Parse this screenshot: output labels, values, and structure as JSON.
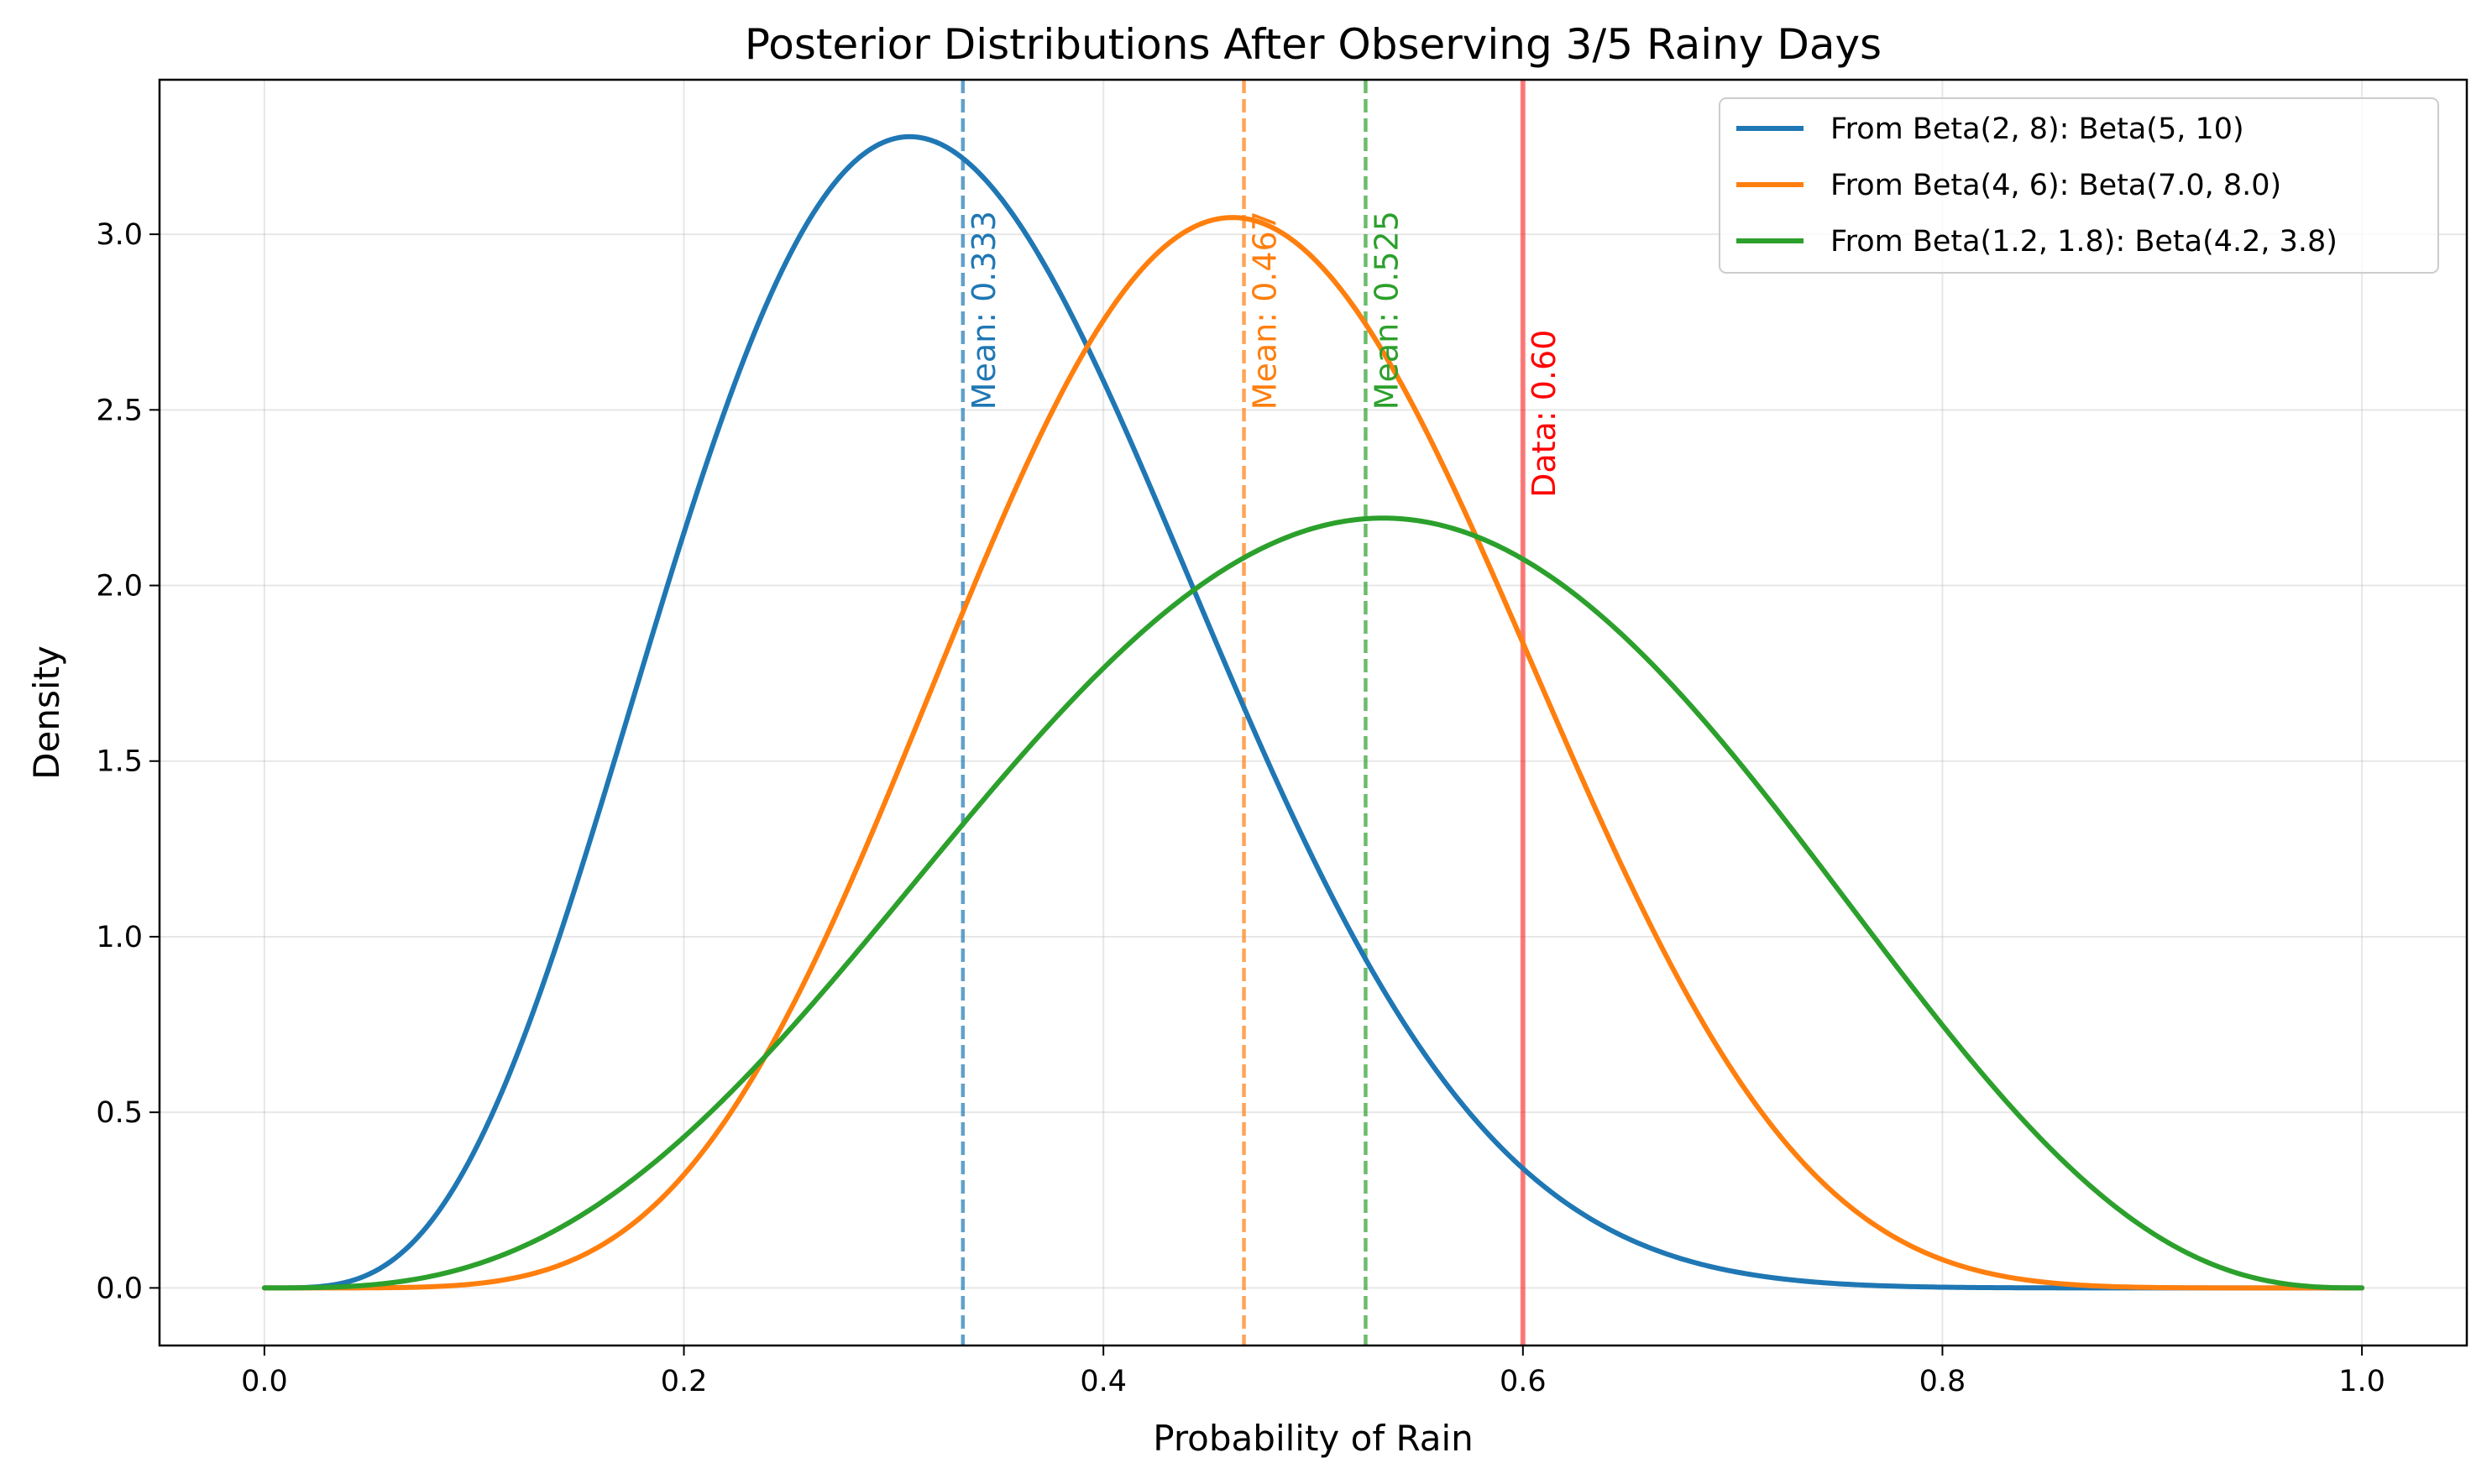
{
  "chart_data": {
    "type": "line",
    "title": "Posterior Distributions After Observing 3/5 Rainy Days",
    "xlabel": "Probability of Rain",
    "ylabel": "Density",
    "xlim": [
      -0.05,
      1.05
    ],
    "ylim": [
      -0.164,
      3.44
    ],
    "xticks": [
      0.0,
      0.2,
      0.4,
      0.6,
      0.8,
      1.0
    ],
    "xtick_labels": [
      "0.0",
      "0.2",
      "0.4",
      "0.6",
      "0.8",
      "1.0"
    ],
    "yticks": [
      0.0,
      0.5,
      1.0,
      1.5,
      2.0,
      2.5,
      3.0
    ],
    "ytick_labels": [
      "0.0",
      "0.5",
      "1.0",
      "1.5",
      "2.0",
      "2.5",
      "3.0"
    ],
    "grid": true,
    "legend_position": "upper right",
    "series": [
      {
        "name": "From Beta(2, 8): Beta(5, 10)",
        "distribution": "beta",
        "alpha": 5,
        "beta": 10,
        "color": "#1f77b4"
      },
      {
        "name": "From Beta(4, 6): Beta(7.0, 8.0)",
        "distribution": "beta",
        "alpha": 7,
        "beta": 8,
        "color": "#ff7f0e"
      },
      {
        "name": "From Beta(1.2, 1.8): Beta(4.2, 3.8)",
        "distribution": "beta",
        "alpha": 4.2,
        "beta": 3.8,
        "color": "#2ca02c"
      }
    ],
    "mean_lines": [
      {
        "x": 0.333,
        "label": "Mean: 0.333",
        "color": "#1f77b4"
      },
      {
        "x": 0.467,
        "label": "Mean: 0.467",
        "color": "#ff7f0e"
      },
      {
        "x": 0.525,
        "label": "Mean: 0.525",
        "color": "#2ca02c"
      }
    ],
    "data_line": {
      "x": 0.6,
      "label": "Data: 0.60",
      "color": "#ff0000"
    }
  }
}
